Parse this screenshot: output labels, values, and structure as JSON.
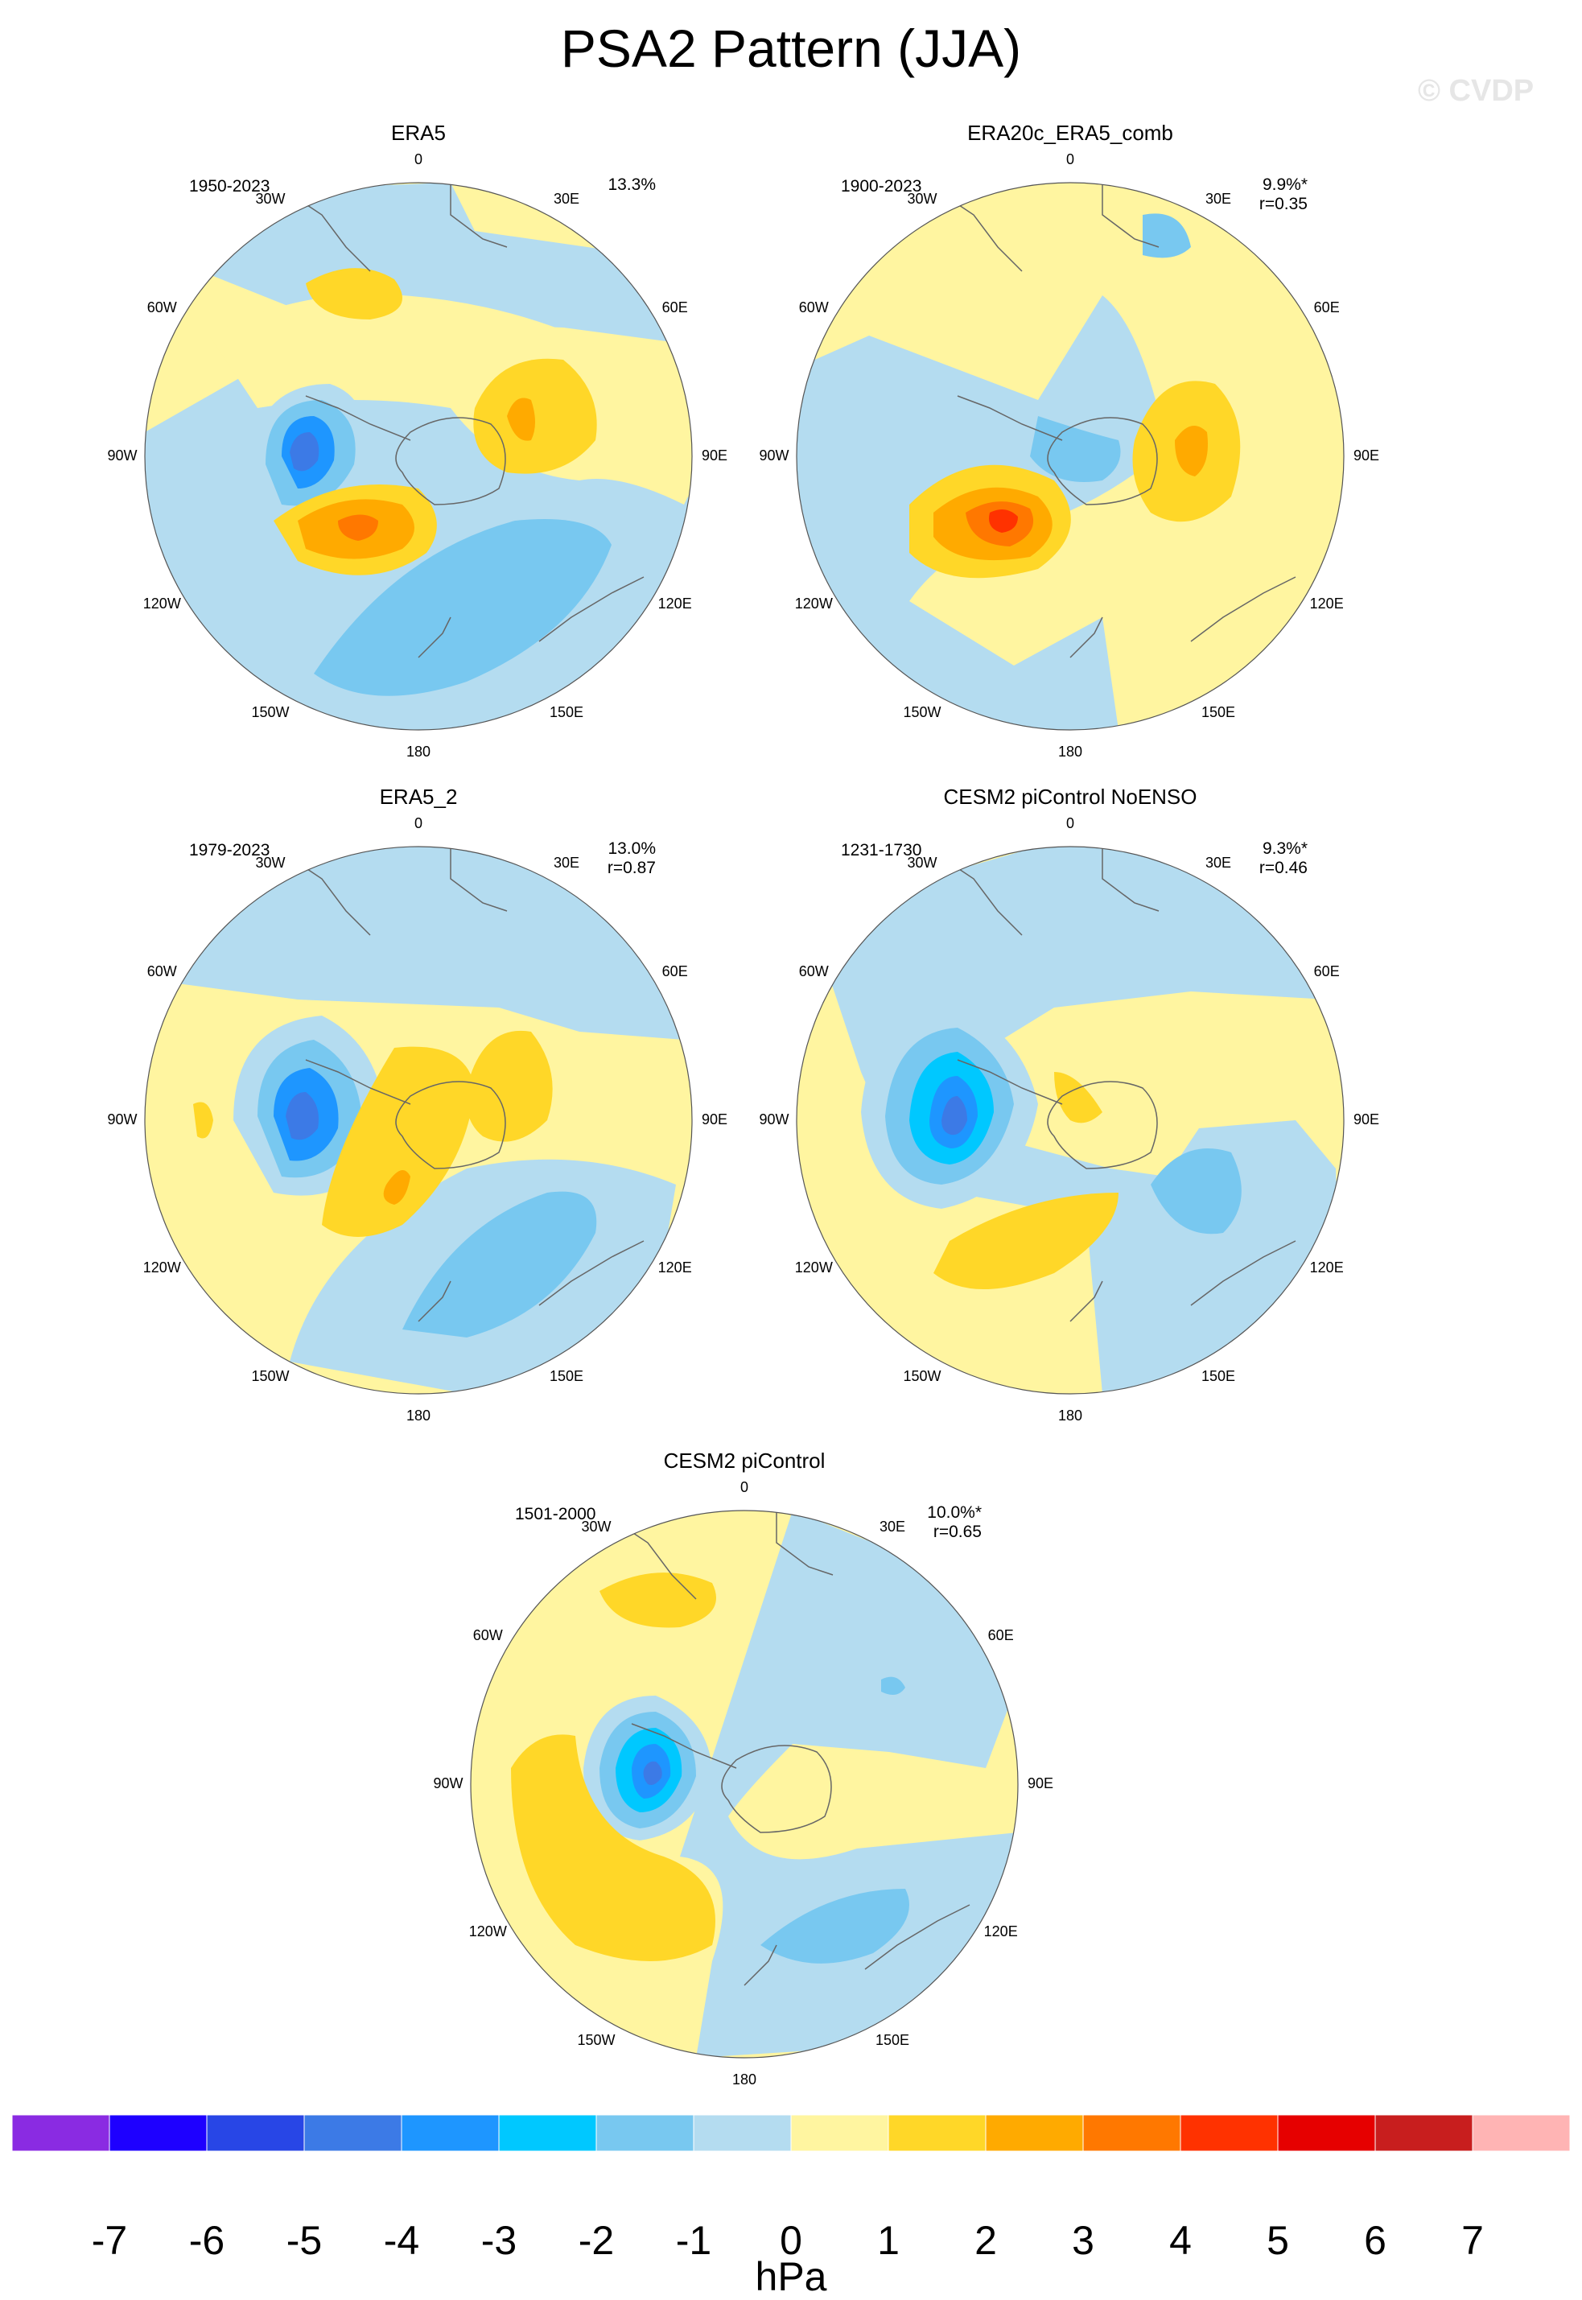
{
  "title": "PSA2 Pattern (JJA)",
  "watermark": "© CVDP",
  "panels": [
    {
      "name": "ERA5",
      "period": "1950-2023",
      "pct": "13.3%",
      "r": ""
    },
    {
      "name": "ERA20c_ERA5_comb",
      "period": "1900-2023",
      "pct": "9.9%*",
      "r": "r=0.35"
    },
    {
      "name": "ERA5_2",
      "period": "1979-2023",
      "pct": "13.0%",
      "r": "r=0.87"
    },
    {
      "name": "CESM2 piControl NoENSO",
      "period": "1231-1730",
      "pct": "9.3%*",
      "r": "r=0.46"
    },
    {
      "name": "CESM2 piControl",
      "period": "1501-2000",
      "pct": "10.0%*",
      "r": "r=0.65"
    }
  ],
  "lon_labels": {
    "l0": "0",
    "l30e": "30E",
    "l60e": "60E",
    "l90e": "90E",
    "l120e": "120E",
    "l150e": "150E",
    "l180": "180",
    "l150w": "150W",
    "l120w": "120W",
    "l90w": "90W",
    "l60w": "60W",
    "l30w": "30W"
  },
  "colorbar": {
    "units": "hPa",
    "ticks": [
      "-7",
      "-6",
      "-5",
      "-4",
      "-3",
      "-2",
      "-1",
      "0",
      "1",
      "2",
      "3",
      "4",
      "5",
      "6",
      "7"
    ],
    "colors": [
      "#8a2be2",
      "#1e00ff",
      "#2846e6",
      "#3c7ae6",
      "#1e96ff",
      "#00c8ff",
      "#78c8f0",
      "#b4dcf0",
      "#fff5a0",
      "#ffd728",
      "#ffaa00",
      "#ff7800",
      "#ff3200",
      "#e60000",
      "#c81e1e",
      "#ffb4b4"
    ]
  },
  "colors": {
    "positive1": "#fff5a0",
    "negative1": "#b4dcf0",
    "coast": "#666666"
  }
}
